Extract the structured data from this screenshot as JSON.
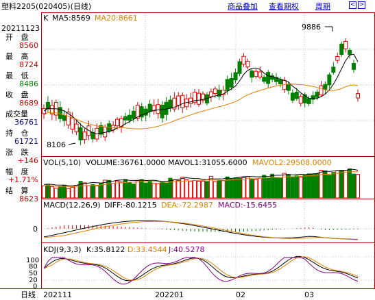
{
  "header": {
    "title": "塑料2205(020405)(日线)",
    "links": [
      "商品叠加",
      "查看期权",
      "周期"
    ],
    "nav_prev": "<",
    "nav_next": ">"
  },
  "info": {
    "date": "20211123",
    "rows": [
      {
        "label": "开  盘",
        "value": "8560",
        "color": "#d00000"
      },
      {
        "label": "最  高",
        "value": "8724",
        "color": "#d00000"
      },
      {
        "label": "最  低",
        "value": "8486",
        "color": "#008000"
      },
      {
        "label": "收  盘",
        "value": "8689",
        "color": "#d00000"
      },
      {
        "label": "成交量",
        "value": "36761",
        "color": "#000080"
      },
      {
        "label": "持  仓",
        "value": "61721",
        "color": "#000080"
      },
      {
        "label": "涨  跌",
        "value": "+146",
        "color": "#d00000"
      },
      {
        "label": "幅  度",
        "value": "+1.71%",
        "color": "#d00000"
      },
      {
        "label": "结  算",
        "value": "8623",
        "color": "#d00000"
      }
    ]
  },
  "kline": {
    "label": "K",
    "ma5": "MA5:8569",
    "ma20": "MA20:8661",
    "high_mark": "9886",
    "low_mark": "8106",
    "colors": {
      "up": "#e00000",
      "down": "#008000",
      "ma5": "#000000",
      "ma20": "#e08000"
    }
  },
  "vol": {
    "label": "VOL(5,10)",
    "volume": "VOLUME:36761.0000",
    "mavol1": "MAVOL1:31055.6000",
    "mavol2": "MAVOL2:29508.0000"
  },
  "macd": {
    "label": "MACD(12,26,9)",
    "diff": "DIFF:-80.1215",
    "dea": "DEA:-72.2987",
    "macd": "MACD:-15.6455",
    "zero": "0"
  },
  "kdj": {
    "label": "KDJ(9,3,3)",
    "k": "K:35.8122",
    "d": "D:33.4544",
    "j": "J:40.5278",
    "levels": [
      "100",
      "80",
      "50",
      "20",
      "0"
    ]
  },
  "x_axis": {
    "period": "日线",
    "labels": [
      "202111",
      "202201",
      "02",
      "03"
    ]
  },
  "chart_data": {
    "type": "candlestick",
    "n_bars": 78,
    "x_ticks": [
      "202111",
      "202201",
      "02",
      "03"
    ],
    "price_range": [
      8106,
      9886
    ],
    "extremes": {
      "high": 9886,
      "low": 8106
    },
    "last_bar": {
      "date": "20211123",
      "open": 8560,
      "high": 8724,
      "low": 8486,
      "close": 8689,
      "volume": 36761,
      "open_interest": 61721,
      "change": 146,
      "change_pct": "+1.71%",
      "settlement": 8623
    },
    "indicators": {
      "MA5": 8569,
      "MA20": 8661,
      "VOLUME": 36761.0,
      "MAVOL1": 31055.6,
      "MAVOL2": 29508.0,
      "DIFF": -80.1215,
      "DEA": -72.2987,
      "MACD": -15.6455,
      "K": 35.8122,
      "D": 33.4544,
      "J": 40.5278
    }
  }
}
